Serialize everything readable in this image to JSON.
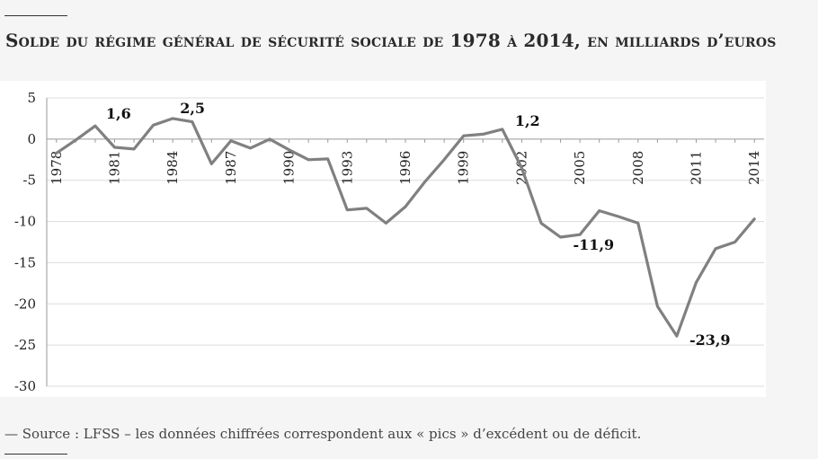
{
  "title": "Solde du régime général de sécurité sociale de 1978 à 2014, en milliards d’euros",
  "source": "— Source : LFSS – les données chiffrées correspondent aux « pics » d’excédent ou de déficit.",
  "chart_data": {
    "type": "line",
    "title": "Solde du régime général de sécurité sociale de 1978 à 2014, en milliards d’euros",
    "xlabel": "",
    "ylabel": "",
    "ylim": [
      -30,
      5
    ],
    "yticks": [
      "5",
      "0",
      "-5",
      "-10",
      "-15",
      "-20",
      "-25",
      "-30"
    ],
    "yticks_values": [
      5,
      0,
      -5,
      -10,
      -15,
      -20,
      -25,
      -30
    ],
    "xticks": [
      "1978",
      "1981",
      "1984",
      "1987",
      "1990",
      "1993",
      "1996",
      "1999",
      "2002",
      "2005",
      "2008",
      "2011",
      "2014"
    ],
    "xticks_values": [
      1978,
      1981,
      1984,
      1987,
      1990,
      1993,
      1996,
      1999,
      2002,
      2005,
      2008,
      2011,
      2014
    ],
    "grid": "horizontal",
    "series": [
      {
        "color": "#808080",
        "x": [
          1978,
          1979,
          1980,
          1981,
          1982,
          1983,
          1984,
          1985,
          1986,
          1987,
          1988,
          1989,
          1990,
          1991,
          1992,
          1993,
          1994,
          1995,
          1996,
          1997,
          1998,
          1999,
          2000,
          2001,
          2002,
          2003,
          2004,
          2005,
          2006,
          2007,
          2008,
          2009,
          2010,
          2011,
          2012,
          2013,
          2014
        ],
        "y": [
          -1.7,
          -0.1,
          1.6,
          -1.0,
          -1.2,
          1.7,
          2.5,
          2.1,
          -3.0,
          -0.2,
          -1.1,
          0.0,
          -1.3,
          -2.5,
          -2.4,
          -8.6,
          -8.4,
          -10.2,
          -8.2,
          -5.2,
          -2.5,
          0.4,
          0.6,
          1.2,
          -3.5,
          -10.2,
          -11.9,
          -11.6,
          -8.7,
          -9.4,
          -10.2,
          -20.3,
          -23.9,
          -17.4,
          -13.3,
          -12.5,
          -9.7
        ]
      }
    ],
    "annotations": [
      {
        "x": 1980,
        "y": 1.6,
        "text": "1,6"
      },
      {
        "x": 1984,
        "y": 2.5,
        "text": "2,5"
      },
      {
        "x": 2001,
        "y": 1.2,
        "text": "1,2"
      },
      {
        "x": 2004,
        "y": -11.9,
        "text": "-11,9"
      },
      {
        "x": 2010,
        "y": -23.9,
        "text": "-23,9"
      }
    ]
  }
}
